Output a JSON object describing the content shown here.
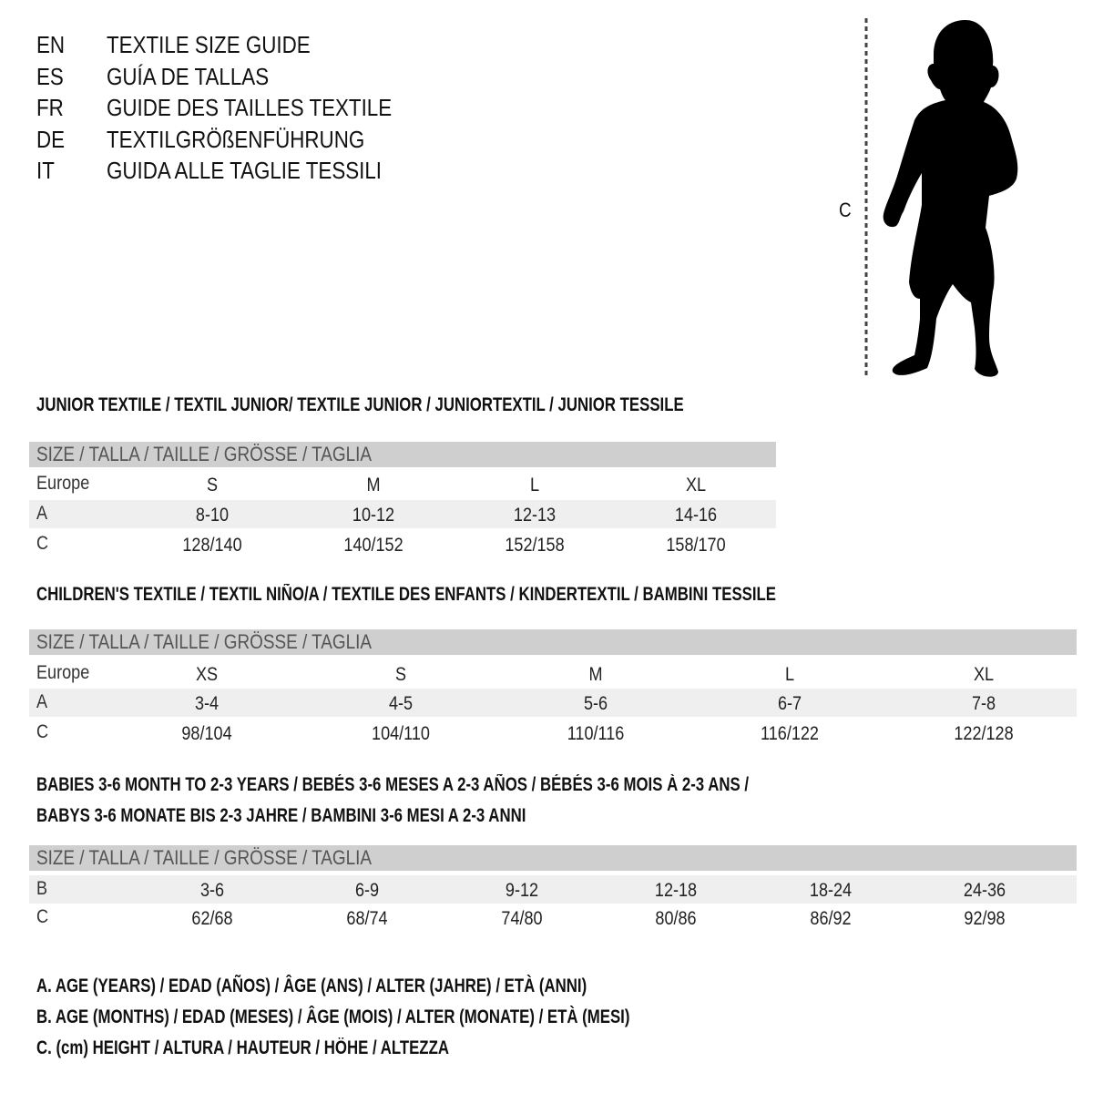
{
  "header": {
    "languages": [
      {
        "code": "EN",
        "title": "TEXTILE SIZE GUIDE"
      },
      {
        "code": "ES",
        "title": "GUÍA DE TALLAS"
      },
      {
        "code": "FR",
        "title": "GUIDE DES TAILLES TEXTILE"
      },
      {
        "code": "DE",
        "title": "TEXTILGRÖßENFÜHRUNG"
      },
      {
        "code": "IT",
        "title": "GUIDA ALLE TAGLIE TESSILI"
      }
    ]
  },
  "figure": {
    "measure_label": "C",
    "icon": "child-silhouette-icon"
  },
  "colors": {
    "header_band": "#cfcfcf",
    "alt_row": "#efefef"
  },
  "tables": [
    {
      "title": "JUNIOR TEXTILE / TEXTIL JUNIOR/ TEXTILE JUNIOR / JUNIORTEXTIL / JUNIOR TESSILE",
      "header": "SIZE / TALLA / TAILLE / GRÖSSE / TAGLIA",
      "rows": [
        {
          "label": "Europe",
          "values": [
            "S",
            "M",
            "L",
            "XL"
          ]
        },
        {
          "label": "A",
          "values": [
            "8-10",
            "10-12",
            "12-13",
            "14-16"
          ]
        },
        {
          "label": "C",
          "values": [
            "128/140",
            "140/152",
            "152/158",
            "158/170"
          ]
        }
      ]
    },
    {
      "title": "CHILDREN'S TEXTILE / TEXTIL NIÑO/A / TEXTILE DES ENFANTS / KINDERTEXTIL / BAMBINI TESSILE",
      "header": "SIZE / TALLA / TAILLE / GRÖSSE / TAGLIA",
      "rows": [
        {
          "label": "Europe",
          "values": [
            "XS",
            "S",
            "M",
            "L",
            "XL"
          ]
        },
        {
          "label": "A",
          "values": [
            "3-4",
            "4-5",
            "5-6",
            "6-7",
            "7-8"
          ]
        },
        {
          "label": "C",
          "values": [
            "98/104",
            "104/110",
            "110/116",
            "116/122",
            "122/128"
          ]
        }
      ]
    },
    {
      "title": "BABIES 3-6 MONTH TO 2-3 YEARS / BEBÉS 3-6 MESES A 2-3 AÑOS / BÉBÉS 3-6 MOIS À 2-3 ANS /",
      "title2": "BABYS 3-6 MONATE BIS 2-3 JAHRE / BAMBINI 3-6 MESI A 2-3 ANNI",
      "header": "SIZE / TALLA / TAILLE / GRÖSSE / TAGLIA",
      "rows": [
        {
          "label": "B",
          "values": [
            "3-6",
            "6-9",
            "9-12",
            "12-18",
            "18-24",
            "24-36"
          ]
        },
        {
          "label": "C",
          "values": [
            "62/68",
            "68/74",
            "74/80",
            "80/86",
            "86/92",
            "92/98"
          ]
        }
      ]
    }
  ],
  "legend": [
    "A. AGE (YEARS) / EDAD (AÑOS) / ÂGE (ANS) / ALTER (JAHRE) / ETÀ (ANNI)",
    "B. AGE (MONTHS) / EDAD (MESES) / ÂGE (MOIS) / ALTER (MONATE) / ETÀ (MESI)",
    "C. (cm) HEIGHT / ALTURA / HAUTEUR / HÖHE / ALTEZZA"
  ]
}
